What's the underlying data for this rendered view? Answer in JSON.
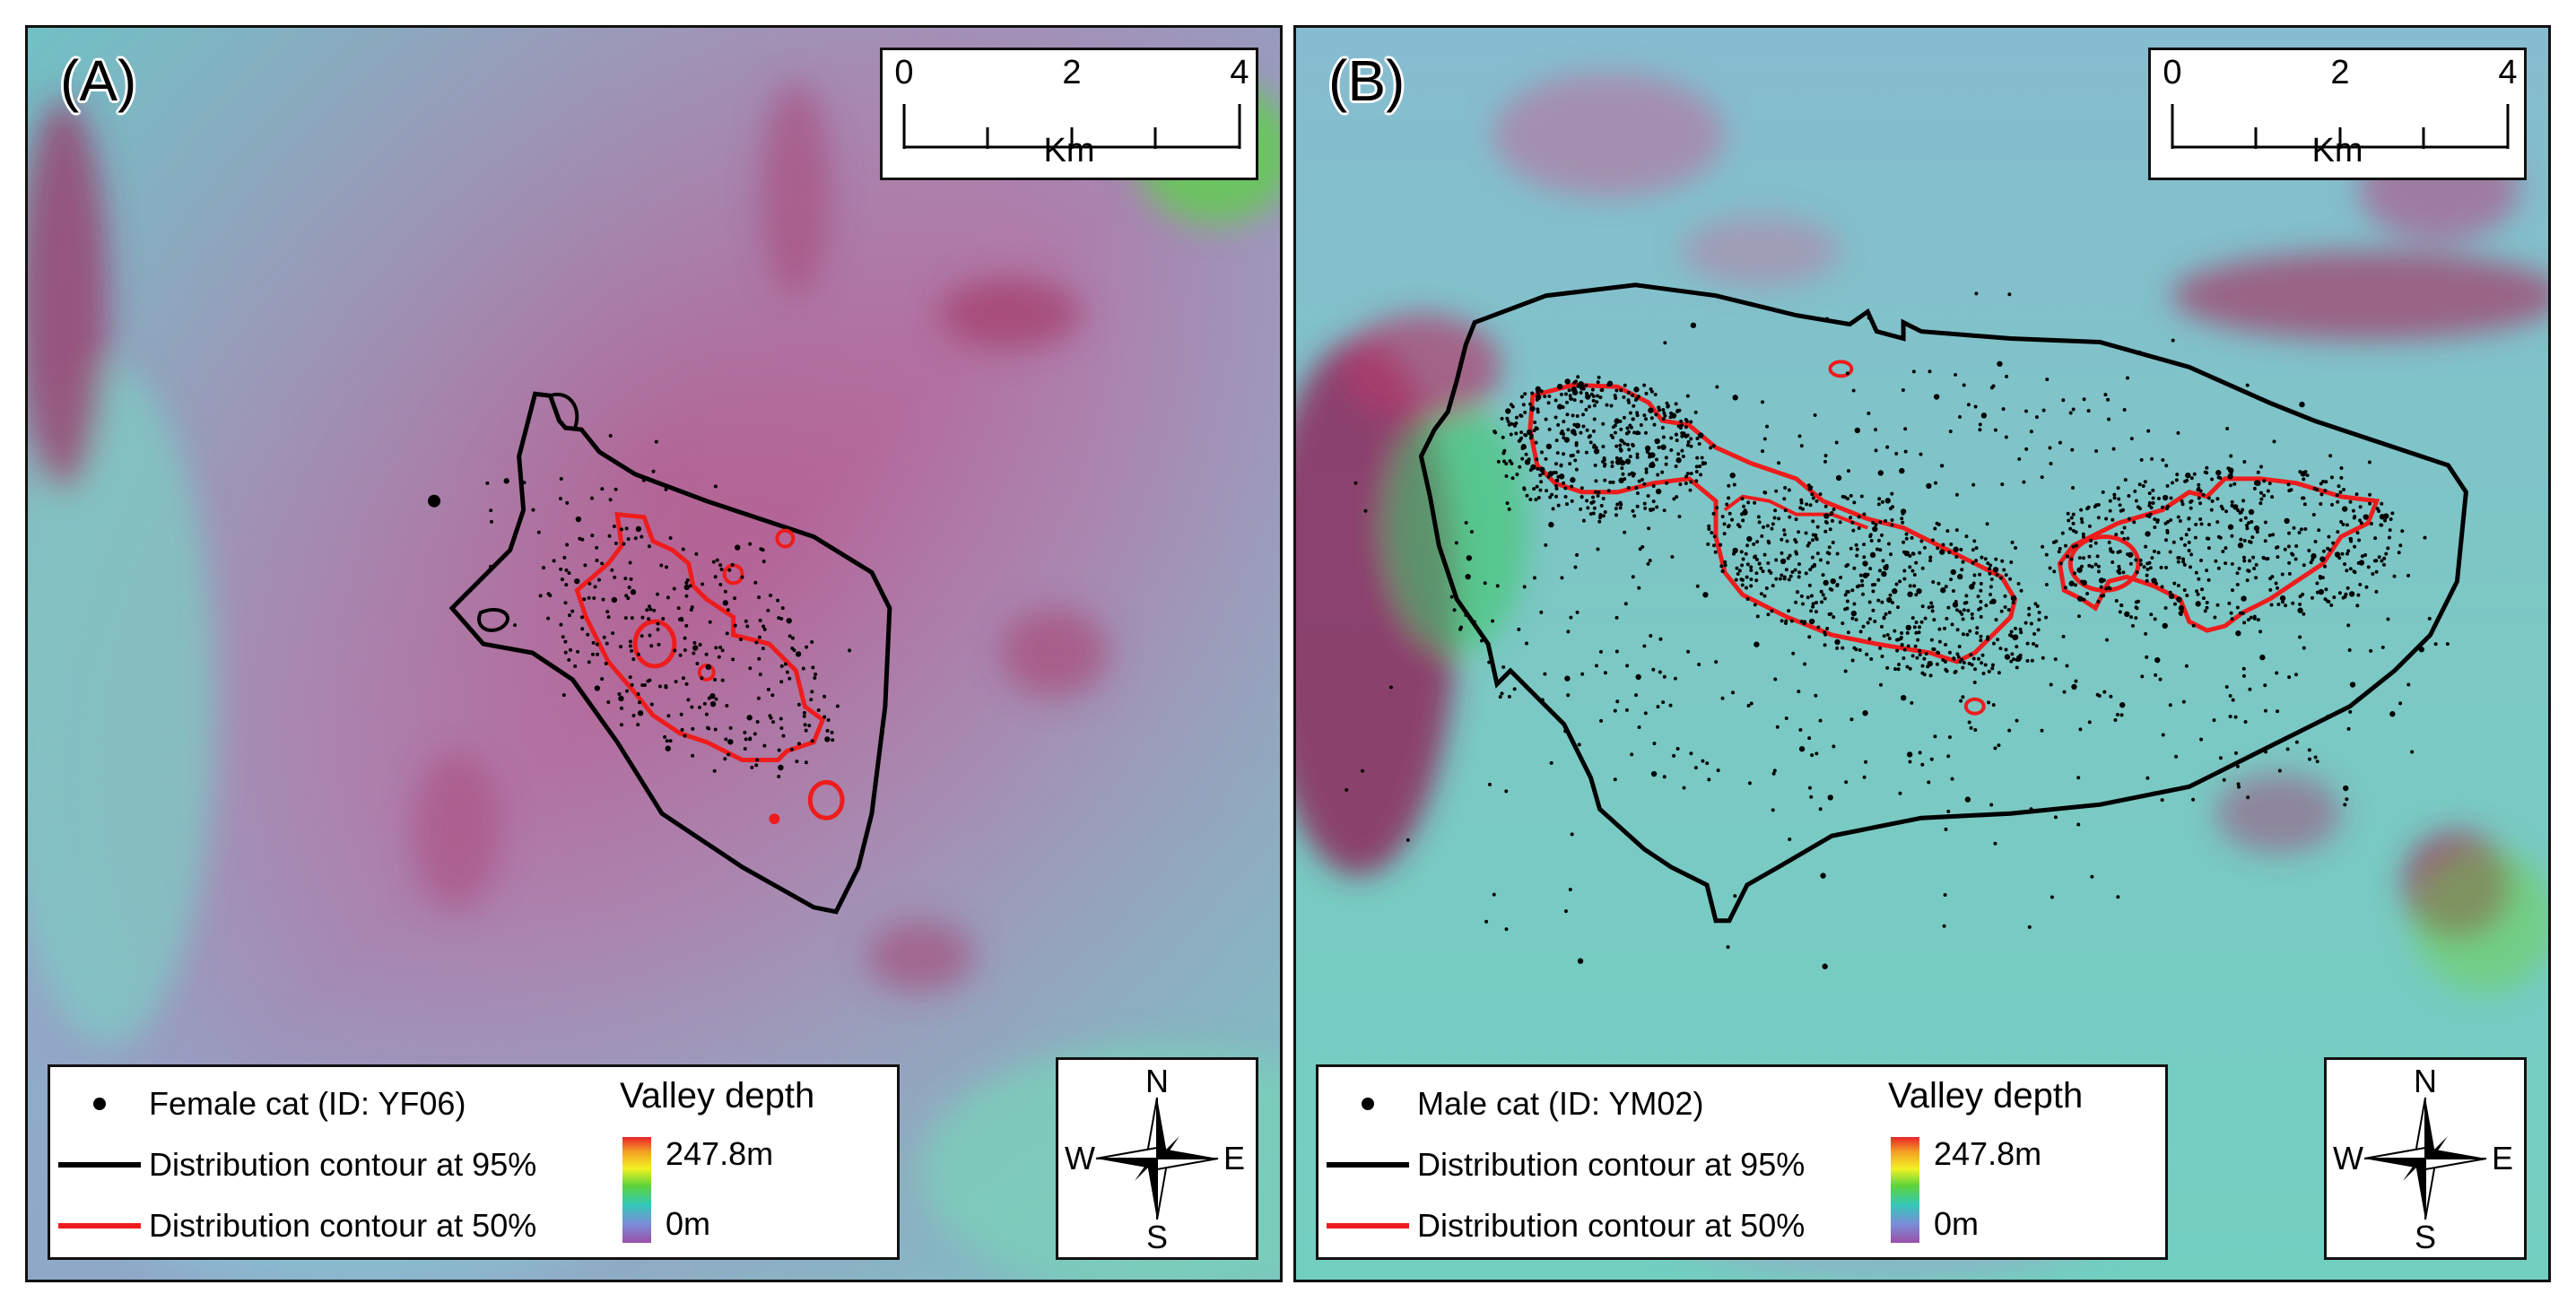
{
  "panels": [
    {
      "label": "(A)",
      "scalebar": {
        "ticks": [
          "0",
          "2",
          "4"
        ],
        "unit": "Km"
      },
      "legend": {
        "points_label": "Female cat (ID: YF06)",
        "contour95_label": "Distribution contour at 95%",
        "contour50_label": "Distribution contour at 50%",
        "ramp_title": "Valley depth",
        "ramp_max": "247.8m",
        "ramp_min": "0m"
      },
      "compass": {
        "n": "N",
        "e": "E",
        "s": "S",
        "w": "W"
      }
    },
    {
      "label": "(B)",
      "scalebar": {
        "ticks": [
          "0",
          "2",
          "4"
        ],
        "unit": "Km"
      },
      "legend": {
        "points_label": "Male cat (ID: YM02)",
        "contour95_label": "Distribution contour at 95%",
        "contour50_label": "Distribution contour at 50%",
        "ramp_title": "Valley depth",
        "ramp_max": "247.8m",
        "ramp_min": "0m"
      },
      "compass": {
        "n": "N",
        "e": "E",
        "s": "S",
        "w": "W"
      }
    }
  ],
  "colors": {
    "contour95": "#000000",
    "contour50": "#ee1c1c",
    "points": "#000000",
    "frame": "#111111"
  }
}
